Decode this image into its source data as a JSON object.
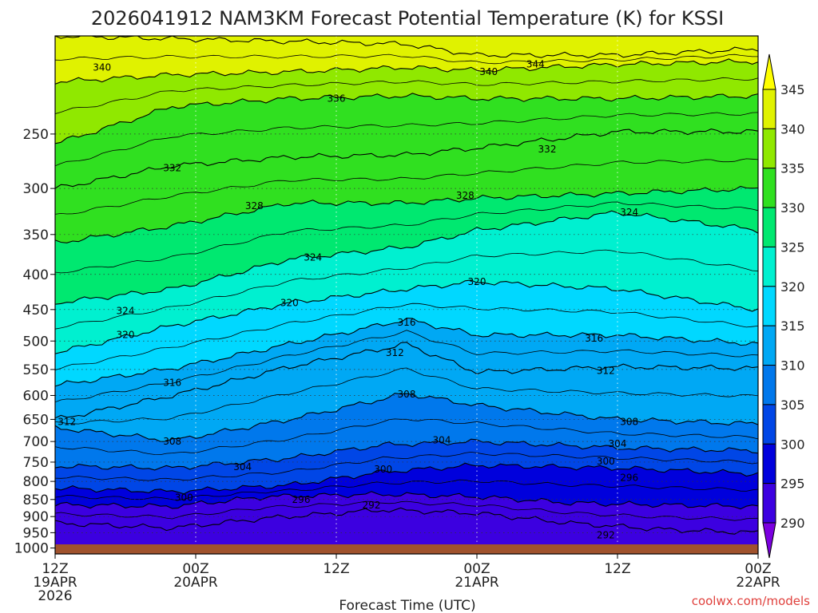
{
  "chart_data": {
    "type": "heatmap",
    "title": "2026041912 NAM3KM Forecast Potential Temperature (K) for KSSI",
    "xlabel": "Forecast Time (UTC)",
    "ylabel": "",
    "credit": "coolwx.com/models",
    "y_axis": {
      "scale": "log",
      "inverted": true,
      "range": [
        1020,
        180
      ],
      "ticks": [
        250,
        300,
        350,
        400,
        450,
        500,
        550,
        600,
        650,
        700,
        750,
        800,
        850,
        900,
        950,
        1000
      ],
      "tick_labels": [
        "250",
        "300",
        "350",
        "400",
        "450",
        "500",
        "550",
        "600",
        "650",
        "700",
        "750",
        "800",
        "850",
        "900",
        "950",
        "1000"
      ],
      "grid": true
    },
    "x_axis": {
      "range": [
        0,
        60
      ],
      "ticks": [
        {
          "hour": 0,
          "lines": [
            "12Z",
            "19APR",
            "2026"
          ]
        },
        {
          "hour": 12,
          "lines": [
            "00Z",
            "20APR"
          ]
        },
        {
          "hour": 24,
          "lines": [
            "12Z"
          ]
        },
        {
          "hour": 36,
          "lines": [
            "00Z",
            "21APR"
          ]
        },
        {
          "hour": 48,
          "lines": [
            "12Z"
          ]
        },
        {
          "hour": 60,
          "lines": [
            "00Z",
            "22APR"
          ]
        }
      ],
      "grid": true
    },
    "colorbar": {
      "levels": [
        290,
        295,
        300,
        305,
        310,
        315,
        320,
        325,
        330,
        335,
        340,
        345
      ],
      "labels": [
        "290",
        "295",
        "300",
        "305",
        "310",
        "315",
        "320",
        "325",
        "330",
        "335",
        "340",
        "345"
      ],
      "colors": [
        "#7b00e0",
        "#3c00e0",
        "#0000dc",
        "#0046e6",
        "#0078ec",
        "#00a8f4",
        "#00d8ff",
        "#00f0d0",
        "#00e870",
        "#30e020",
        "#90e800",
        "#e0f200",
        "#ffff00"
      ],
      "extend": "both"
    },
    "contour_interval": 4,
    "surface_color": "#a0522d",
    "contours": [
      {
        "level": 292,
        "profile": [
          [
            0,
            920
          ],
          [
            10,
            935
          ],
          [
            18,
            905
          ],
          [
            28,
            880
          ],
          [
            36,
            890
          ],
          [
            44,
            920
          ],
          [
            52,
            940
          ],
          [
            60,
            950
          ]
        ]
      },
      {
        "level": 296,
        "profile": [
          [
            0,
            865
          ],
          [
            10,
            870
          ],
          [
            18,
            842
          ],
          [
            28,
            835
          ],
          [
            36,
            842
          ],
          [
            44,
            860
          ],
          [
            52,
            866
          ],
          [
            60,
            870
          ]
        ]
      },
      {
        "level": 300,
        "profile": [
          [
            0,
            818
          ],
          [
            10,
            828
          ],
          [
            20,
            810
          ],
          [
            28,
            775
          ],
          [
            36,
            758
          ],
          [
            48,
            765
          ],
          [
            60,
            780
          ]
        ]
      },
      {
        "level": 304,
        "profile": [
          [
            0,
            760
          ],
          [
            10,
            765
          ],
          [
            20,
            740
          ],
          [
            28,
            708
          ],
          [
            36,
            700
          ],
          [
            48,
            715
          ],
          [
            60,
            722
          ]
        ]
      },
      {
        "level": 308,
        "profile": [
          [
            0,
            668
          ],
          [
            10,
            698
          ],
          [
            20,
            650
          ],
          [
            30,
            596
          ],
          [
            36,
            620
          ],
          [
            48,
            650
          ],
          [
            60,
            660
          ]
        ]
      },
      {
        "level": 312,
        "profile": [
          [
            0,
            650
          ],
          [
            10,
            600
          ],
          [
            20,
            545
          ],
          [
            30,
            505
          ],
          [
            36,
            555
          ],
          [
            48,
            545
          ],
          [
            60,
            548
          ]
        ]
      },
      {
        "level": 316,
        "profile": [
          [
            0,
            580
          ],
          [
            10,
            548
          ],
          [
            20,
            505
          ],
          [
            30,
            465
          ],
          [
            36,
            490
          ],
          [
            48,
            490
          ],
          [
            60,
            505
          ]
        ]
      },
      {
        "level": 320,
        "profile": [
          [
            0,
            520
          ],
          [
            10,
            475
          ],
          [
            20,
            440
          ],
          [
            30,
            420
          ],
          [
            36,
            410
          ],
          [
            48,
            420
          ],
          [
            60,
            450
          ]
        ]
      },
      {
        "level": 324,
        "profile": [
          [
            0,
            440
          ],
          [
            10,
            420
          ],
          [
            20,
            380
          ],
          [
            30,
            365
          ],
          [
            36,
            345
          ],
          [
            48,
            325
          ],
          [
            60,
            345
          ]
        ]
      },
      {
        "level": 328,
        "profile": [
          [
            0,
            360
          ],
          [
            10,
            340
          ],
          [
            20,
            315
          ],
          [
            30,
            315
          ],
          [
            36,
            310
          ],
          [
            48,
            305
          ],
          [
            60,
            300
          ]
        ]
      },
      {
        "level": 332,
        "profile": [
          [
            0,
            300
          ],
          [
            10,
            278
          ],
          [
            20,
            270
          ],
          [
            30,
            268
          ],
          [
            36,
            262
          ],
          [
            48,
            248
          ],
          [
            60,
            248
          ]
        ]
      },
      {
        "level": 336,
        "profile": [
          [
            0,
            258
          ],
          [
            10,
            228
          ],
          [
            20,
            222
          ],
          [
            30,
            220
          ],
          [
            36,
            222
          ],
          [
            48,
            222
          ],
          [
            60,
            220
          ]
        ]
      },
      {
        "level": 340,
        "profile": [
          [
            0,
            210
          ],
          [
            10,
            205
          ],
          [
            20,
            203
          ],
          [
            30,
            200
          ],
          [
            36,
            202
          ],
          [
            48,
            198
          ],
          [
            60,
            196
          ]
        ]
      },
      {
        "level": 344,
        "profile": [
          [
            0,
            180
          ],
          [
            30,
            185
          ],
          [
            36,
            192
          ],
          [
            48,
            192
          ],
          [
            60,
            188
          ]
        ]
      }
    ],
    "contour_labels": [
      {
        "text": "340",
        "hour": 4,
        "p": 200
      },
      {
        "text": "336",
        "hour": 24,
        "p": 222
      },
      {
        "text": "340",
        "hour": 37,
        "p": 203
      },
      {
        "text": "344",
        "hour": 41,
        "p": 198
      },
      {
        "text": "332",
        "hour": 10,
        "p": 280
      },
      {
        "text": "332",
        "hour": 42,
        "p": 263
      },
      {
        "text": "328",
        "hour": 17,
        "p": 318
      },
      {
        "text": "328",
        "hour": 35,
        "p": 307
      },
      {
        "text": "324",
        "hour": 49,
        "p": 325
      },
      {
        "text": "324",
        "hour": 22,
        "p": 378
      },
      {
        "text": "320",
        "hour": 36,
        "p": 410
      },
      {
        "text": "320",
        "hour": 20,
        "p": 440
      },
      {
        "text": "324",
        "hour": 6,
        "p": 452
      },
      {
        "text": "320",
        "hour": 6,
        "p": 490
      },
      {
        "text": "316",
        "hour": 30,
        "p": 470
      },
      {
        "text": "316",
        "hour": 46,
        "p": 496
      },
      {
        "text": "312",
        "hour": 29,
        "p": 520
      },
      {
        "text": "316",
        "hour": 10,
        "p": 575
      },
      {
        "text": "312",
        "hour": 47,
        "p": 552
      },
      {
        "text": "308",
        "hour": 30,
        "p": 598
      },
      {
        "text": "312",
        "hour": 1,
        "p": 655
      },
      {
        "text": "308",
        "hour": 49,
        "p": 655
      },
      {
        "text": "308",
        "hour": 10,
        "p": 700
      },
      {
        "text": "304",
        "hour": 33,
        "p": 697
      },
      {
        "text": "304",
        "hour": 48,
        "p": 705
      },
      {
        "text": "304",
        "hour": 16,
        "p": 762
      },
      {
        "text": "300",
        "hour": 28,
        "p": 768
      },
      {
        "text": "300",
        "hour": 47,
        "p": 748
      },
      {
        "text": "296",
        "hour": 49,
        "p": 790
      },
      {
        "text": "300",
        "hour": 11,
        "p": 845
      },
      {
        "text": "296",
        "hour": 21,
        "p": 850
      },
      {
        "text": "292",
        "hour": 27,
        "p": 867
      },
      {
        "text": "292",
        "hour": 47,
        "p": 958
      }
    ]
  }
}
